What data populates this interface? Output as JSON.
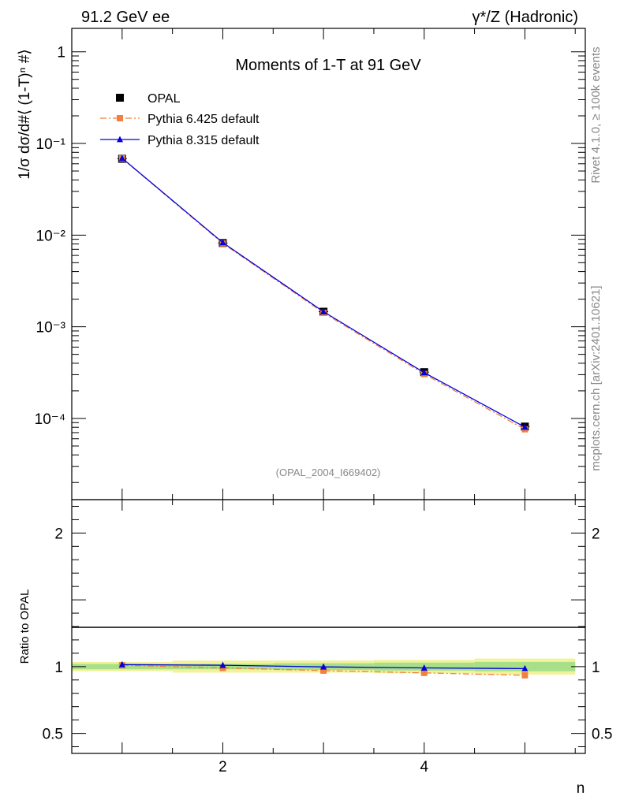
{
  "header": {
    "left": "91.2 GeV ee",
    "right": "γ*/Z (Hadronic)"
  },
  "side_labels": {
    "top": "Rivet 4.1.0, ≥ 100k events",
    "bottom": "mcplots.cern.ch [arXiv:2401.10621]"
  },
  "chart_data": [
    {
      "type": "line",
      "title": "Moments of 1-T at 91 GeV",
      "watermark": "(OPAL_2004_I669402)",
      "ylabel": "1/σ dσ/d#⟨ (1-T)ⁿ #⟩",
      "yscale": "log",
      "xlim": [
        0.5,
        5.6
      ],
      "ylim": [
        1.3e-05,
        1.8
      ],
      "x": [
        1,
        2,
        3,
        4,
        5
      ],
      "ytick_labels": [
        "1",
        "10⁻¹",
        "10⁻²",
        "10⁻³",
        "10⁻⁴"
      ],
      "ytick_values": [
        1,
        0.1,
        0.01,
        0.001,
        0.0001
      ],
      "legend_position": "top-left",
      "series": [
        {
          "name": "OPAL",
          "color": "#000000",
          "marker": "square",
          "line": "none",
          "values": [
            0.068,
            0.0082,
            0.00146,
            0.00032,
            8.15e-05
          ]
        },
        {
          "name": "Pythia 6.425 default",
          "color": "#f27f3d",
          "marker": "square",
          "line": "dashdot",
          "values": [
            0.0686,
            0.00812,
            0.00142,
            0.000305,
            7.62e-05
          ]
        },
        {
          "name": "Pythia 8.315 default",
          "color": "#0000dd",
          "marker": "triangle",
          "line": "solid",
          "values": [
            0.069,
            0.00828,
            0.00146,
            0.000316,
            8.05e-05
          ]
        }
      ]
    },
    {
      "type": "line",
      "ylabel": "Ratio to OPAL",
      "xlabel": "n",
      "xlim": [
        0.5,
        5.6
      ],
      "ylim": [
        0.35,
        2.25
      ],
      "x": [
        1,
        2,
        3,
        4,
        5
      ],
      "xtick_labels": [
        "2",
        "4"
      ],
      "xtick_values": [
        2,
        4
      ],
      "ytick_labels": [
        "0.5",
        "1",
        "2"
      ],
      "ytick_values": [
        0.5,
        1,
        2
      ],
      "band": {
        "name": "OPAL uncertainty",
        "x_edges": [
          0.5,
          1.5,
          2.5,
          3.5,
          4.5,
          5.5
        ],
        "outer": [
          0.035,
          0.045,
          0.045,
          0.05,
          0.06
        ],
        "inner": [
          0.02,
          0.02,
          0.025,
          0.03,
          0.035
        ],
        "outer_color": "#f2f29a",
        "inner_color": "#a8e08a"
      },
      "series": [
        {
          "name": "Pythia 6.425 default",
          "color": "#f27f3d",
          "marker": "square",
          "line": "dashdot",
          "values": [
            1.01,
            0.99,
            0.97,
            0.953,
            0.935
          ]
        },
        {
          "name": "Pythia 8.315 default",
          "color": "#0000dd",
          "marker": "triangle",
          "line": "solid",
          "values": [
            1.015,
            1.01,
            0.998,
            0.99,
            0.985
          ]
        }
      ]
    }
  ]
}
